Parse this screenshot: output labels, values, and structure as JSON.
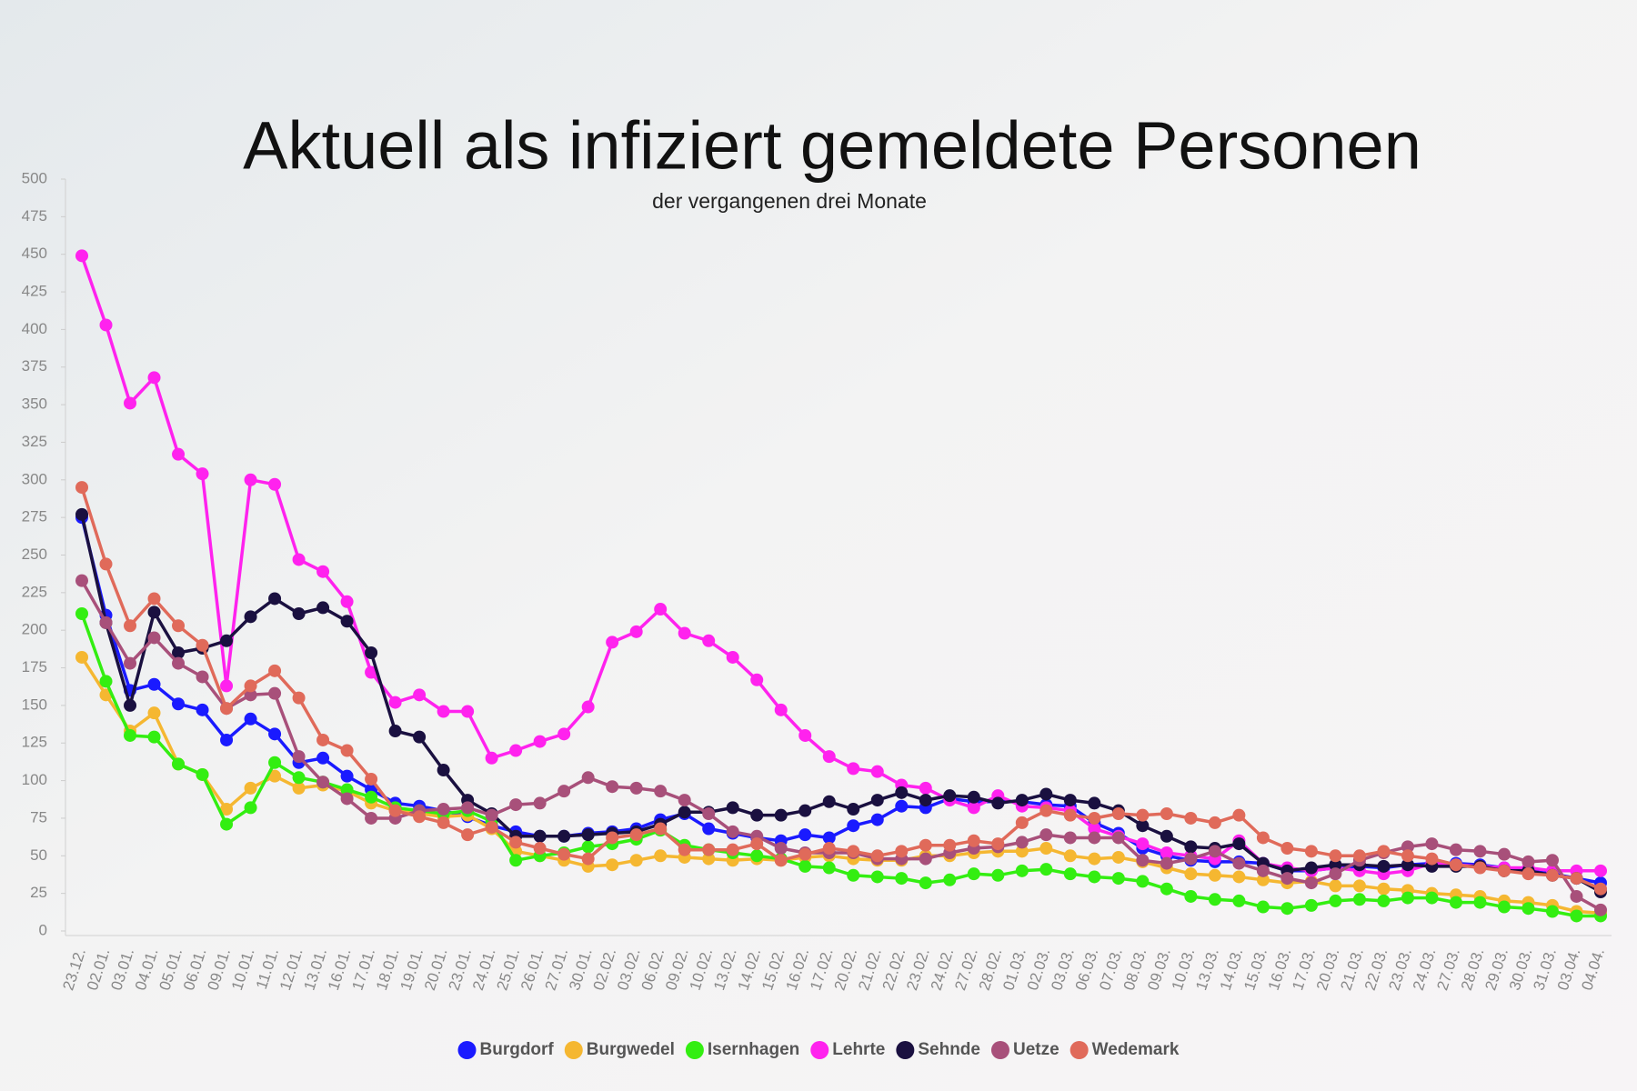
{
  "chart_data": {
    "type": "line",
    "title": "Aktuell als infiziert gemeldete Personen",
    "subtitle": "der vergangenen drei Monate",
    "categories": [
      "23.12.",
      "02.01.",
      "03.01.",
      "04.01.",
      "05.01.",
      "06.01.",
      "09.01.",
      "10.01.",
      "11.01.",
      "12.01.",
      "13.01.",
      "16.01.",
      "17.01.",
      "18.01.",
      "19.01.",
      "20.01.",
      "23.01.",
      "24.01.",
      "25.01.",
      "26.01.",
      "27.01.",
      "30.01.",
      "02.02.",
      "03.02.",
      "06.02.",
      "09.02.",
      "10.02.",
      "13.02.",
      "14.02.",
      "15.02.",
      "16.02.",
      "17.02.",
      "20.02.",
      "21.02.",
      "22.02.",
      "23.02.",
      "24.02.",
      "27.02.",
      "28.02.",
      "01.03.",
      "02.03.",
      "03.03.",
      "06.03.",
      "07.03.",
      "08.03.",
      "09.03.",
      "10.03.",
      "13.03.",
      "14.03.",
      "15.03.",
      "16.03.",
      "17.03.",
      "20.03.",
      "21.03.",
      "22.03.",
      "23.03.",
      "24.03.",
      "27.03.",
      "28.03.",
      "29.03.",
      "30.03.",
      "31.03.",
      "03.04.",
      "04.04."
    ],
    "series": [
      {
        "name": "Burgdorf",
        "color": "#1a1aff",
        "values": [
          275,
          210,
          160,
          164,
          151,
          147,
          127,
          141,
          131,
          112,
          115,
          103,
          94,
          85,
          83,
          80,
          76,
          70,
          66,
          63,
          63,
          65,
          66,
          68,
          74,
          78,
          68,
          65,
          62,
          60,
          64,
          62,
          70,
          74,
          83,
          82,
          88,
          86,
          86,
          86,
          84,
          83,
          72,
          65,
          55,
          50,
          47,
          46,
          46,
          45,
          40,
          40,
          42,
          43,
          42,
          44,
          45,
          45,
          44,
          42,
          40,
          38,
          35,
          32
        ]
      },
      {
        "name": "Burgwedel",
        "color": "#f5b731",
        "values": [
          182,
          157,
          133,
          145,
          111,
          104,
          81,
          95,
          103,
          95,
          97,
          93,
          85,
          80,
          78,
          76,
          77,
          68,
          53,
          50,
          47,
          43,
          44,
          47,
          50,
          49,
          48,
          47,
          48,
          47,
          49,
          50,
          48,
          47,
          47,
          50,
          50,
          52,
          53,
          53,
          55,
          50,
          48,
          49,
          46,
          42,
          38,
          37,
          36,
          34,
          32,
          33,
          30,
          30,
          28,
          27,
          25,
          24,
          23,
          20,
          19,
          17,
          13,
          12
        ]
      },
      {
        "name": "Isernhagen",
        "color": "#33ee11",
        "values": [
          211,
          166,
          130,
          129,
          111,
          104,
          71,
          82,
          112,
          102,
          99,
          94,
          89,
          82,
          80,
          78,
          80,
          73,
          47,
          50,
          52,
          56,
          58,
          61,
          67,
          57,
          54,
          52,
          50,
          48,
          43,
          42,
          37,
          36,
          35,
          32,
          34,
          38,
          37,
          40,
          41,
          38,
          36,
          35,
          33,
          28,
          23,
          21,
          20,
          16,
          15,
          17,
          20,
          21,
          20,
          22,
          22,
          19,
          19,
          16,
          15,
          13,
          10,
          10
        ]
      },
      {
        "name": "Lehrte",
        "color": "#ff22ee",
        "values": [
          449,
          403,
          351,
          368,
          317,
          304,
          163,
          300,
          297,
          247,
          239,
          219,
          172,
          152,
          157,
          146,
          146,
          115,
          120,
          126,
          131,
          149,
          192,
          199,
          214,
          198,
          193,
          182,
          167,
          147,
          130,
          116,
          108,
          106,
          97,
          95,
          87,
          82,
          90,
          83,
          82,
          80,
          68,
          63,
          58,
          52,
          50,
          48,
          60,
          45,
          42,
          40,
          42,
          40,
          38,
          40,
          45,
          44,
          43,
          42,
          42,
          40,
          40,
          40
        ]
      },
      {
        "name": "Sehnde",
        "color": "#1a1040",
        "values": [
          277,
          205,
          150,
          212,
          185,
          188,
          193,
          209,
          221,
          211,
          215,
          206,
          185,
          133,
          129,
          107,
          87,
          78,
          63,
          63,
          63,
          64,
          65,
          66,
          71,
          79,
          79,
          82,
          77,
          77,
          80,
          86,
          81,
          87,
          92,
          87,
          90,
          89,
          85,
          87,
          91,
          87,
          85,
          80,
          70,
          63,
          56,
          55,
          58,
          45,
          40,
          42,
          44,
          44,
          43,
          44,
          43,
          43,
          43,
          40,
          40,
          37,
          35,
          26
        ]
      },
      {
        "name": "Uetze",
        "color": "#a8507a",
        "values": [
          233,
          205,
          178,
          195,
          178,
          169,
          148,
          157,
          158,
          116,
          99,
          88,
          75,
          75,
          80,
          81,
          82,
          77,
          84,
          85,
          93,
          102,
          96,
          95,
          93,
          87,
          78,
          66,
          63,
          55,
          52,
          52,
          52,
          48,
          48,
          48,
          52,
          55,
          56,
          59,
          64,
          62,
          62,
          62,
          47,
          45,
          48,
          53,
          45,
          40,
          35,
          32,
          38,
          47,
          52,
          56,
          58,
          54,
          53,
          51,
          46,
          47,
          23,
          14
        ]
      },
      {
        "name": "Wedemark",
        "color": "#e06a5a",
        "values": [
          295,
          244,
          203,
          221,
          203,
          190,
          148,
          163,
          173,
          155,
          127,
          120,
          101,
          80,
          76,
          72,
          64,
          69,
          59,
          55,
          51,
          48,
          62,
          64,
          68,
          54,
          54,
          54,
          58,
          47,
          51,
          55,
          53,
          50,
          53,
          57,
          57,
          60,
          58,
          72,
          80,
          77,
          75,
          78,
          77,
          78,
          75,
          72,
          77,
          62,
          55,
          53,
          50,
          50,
          53,
          50,
          48,
          44,
          42,
          40,
          38,
          37,
          35,
          28
        ]
      }
    ],
    "ylim": [
      0,
      500
    ],
    "yticks": [
      0,
      25,
      50,
      75,
      100,
      125,
      150,
      175,
      200,
      225,
      250,
      275,
      300,
      325,
      350,
      375,
      400,
      425,
      450,
      475,
      500
    ],
    "grid": false,
    "legend": "bottom"
  }
}
